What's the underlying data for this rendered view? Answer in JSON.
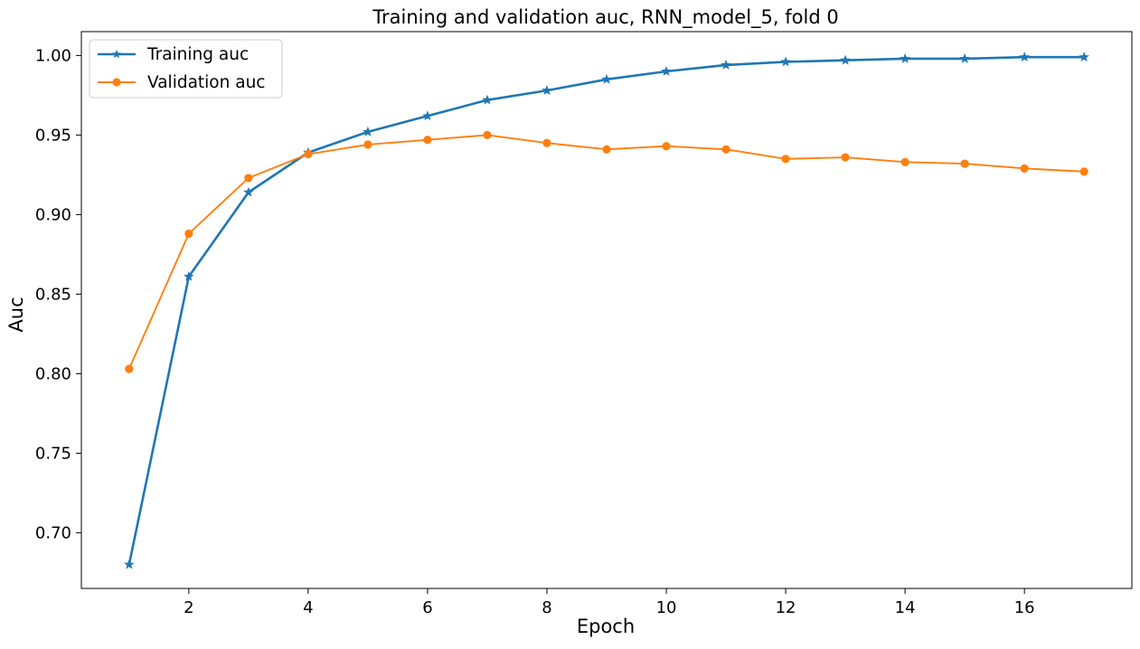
{
  "chart_data": {
    "type": "line",
    "title": "Training and validation auc, RNN_model_5, fold 0",
    "xlabel": "Epoch",
    "ylabel": "Auc",
    "x": [
      1,
      2,
      3,
      4,
      5,
      6,
      7,
      8,
      9,
      10,
      11,
      12,
      13,
      14,
      15,
      16,
      17
    ],
    "xlim": [
      0.2,
      17.8
    ],
    "ylim": [
      0.665,
      1.015
    ],
    "xticks": [
      2,
      4,
      6,
      8,
      10,
      12,
      14,
      16
    ],
    "xtick_labels": [
      "2",
      "4",
      "6",
      "8",
      "10",
      "12",
      "14",
      "16"
    ],
    "yticks": [
      0.7,
      0.75,
      0.8,
      0.85,
      0.9,
      0.95,
      1.0
    ],
    "ytick_labels": [
      "0.70",
      "0.75",
      "0.80",
      "0.85",
      "0.90",
      "0.95",
      "1.00"
    ],
    "grid": false,
    "legend_position": "upper-left",
    "series": [
      {
        "name": "Training auc",
        "color": "#1f77b4",
        "marker": "star",
        "values": [
          0.68,
          0.861,
          0.914,
          0.939,
          0.952,
          0.962,
          0.972,
          0.978,
          0.985,
          0.99,
          0.994,
          0.996,
          0.997,
          0.998,
          0.998,
          0.999,
          0.999
        ]
      },
      {
        "name": "Validation auc",
        "color": "#ff7f0e",
        "marker": "circle",
        "values": [
          0.803,
          0.888,
          0.923,
          0.938,
          0.944,
          0.947,
          0.95,
          0.945,
          0.941,
          0.943,
          0.941,
          0.935,
          0.936,
          0.933,
          0.932,
          0.929,
          0.927
        ]
      }
    ]
  }
}
